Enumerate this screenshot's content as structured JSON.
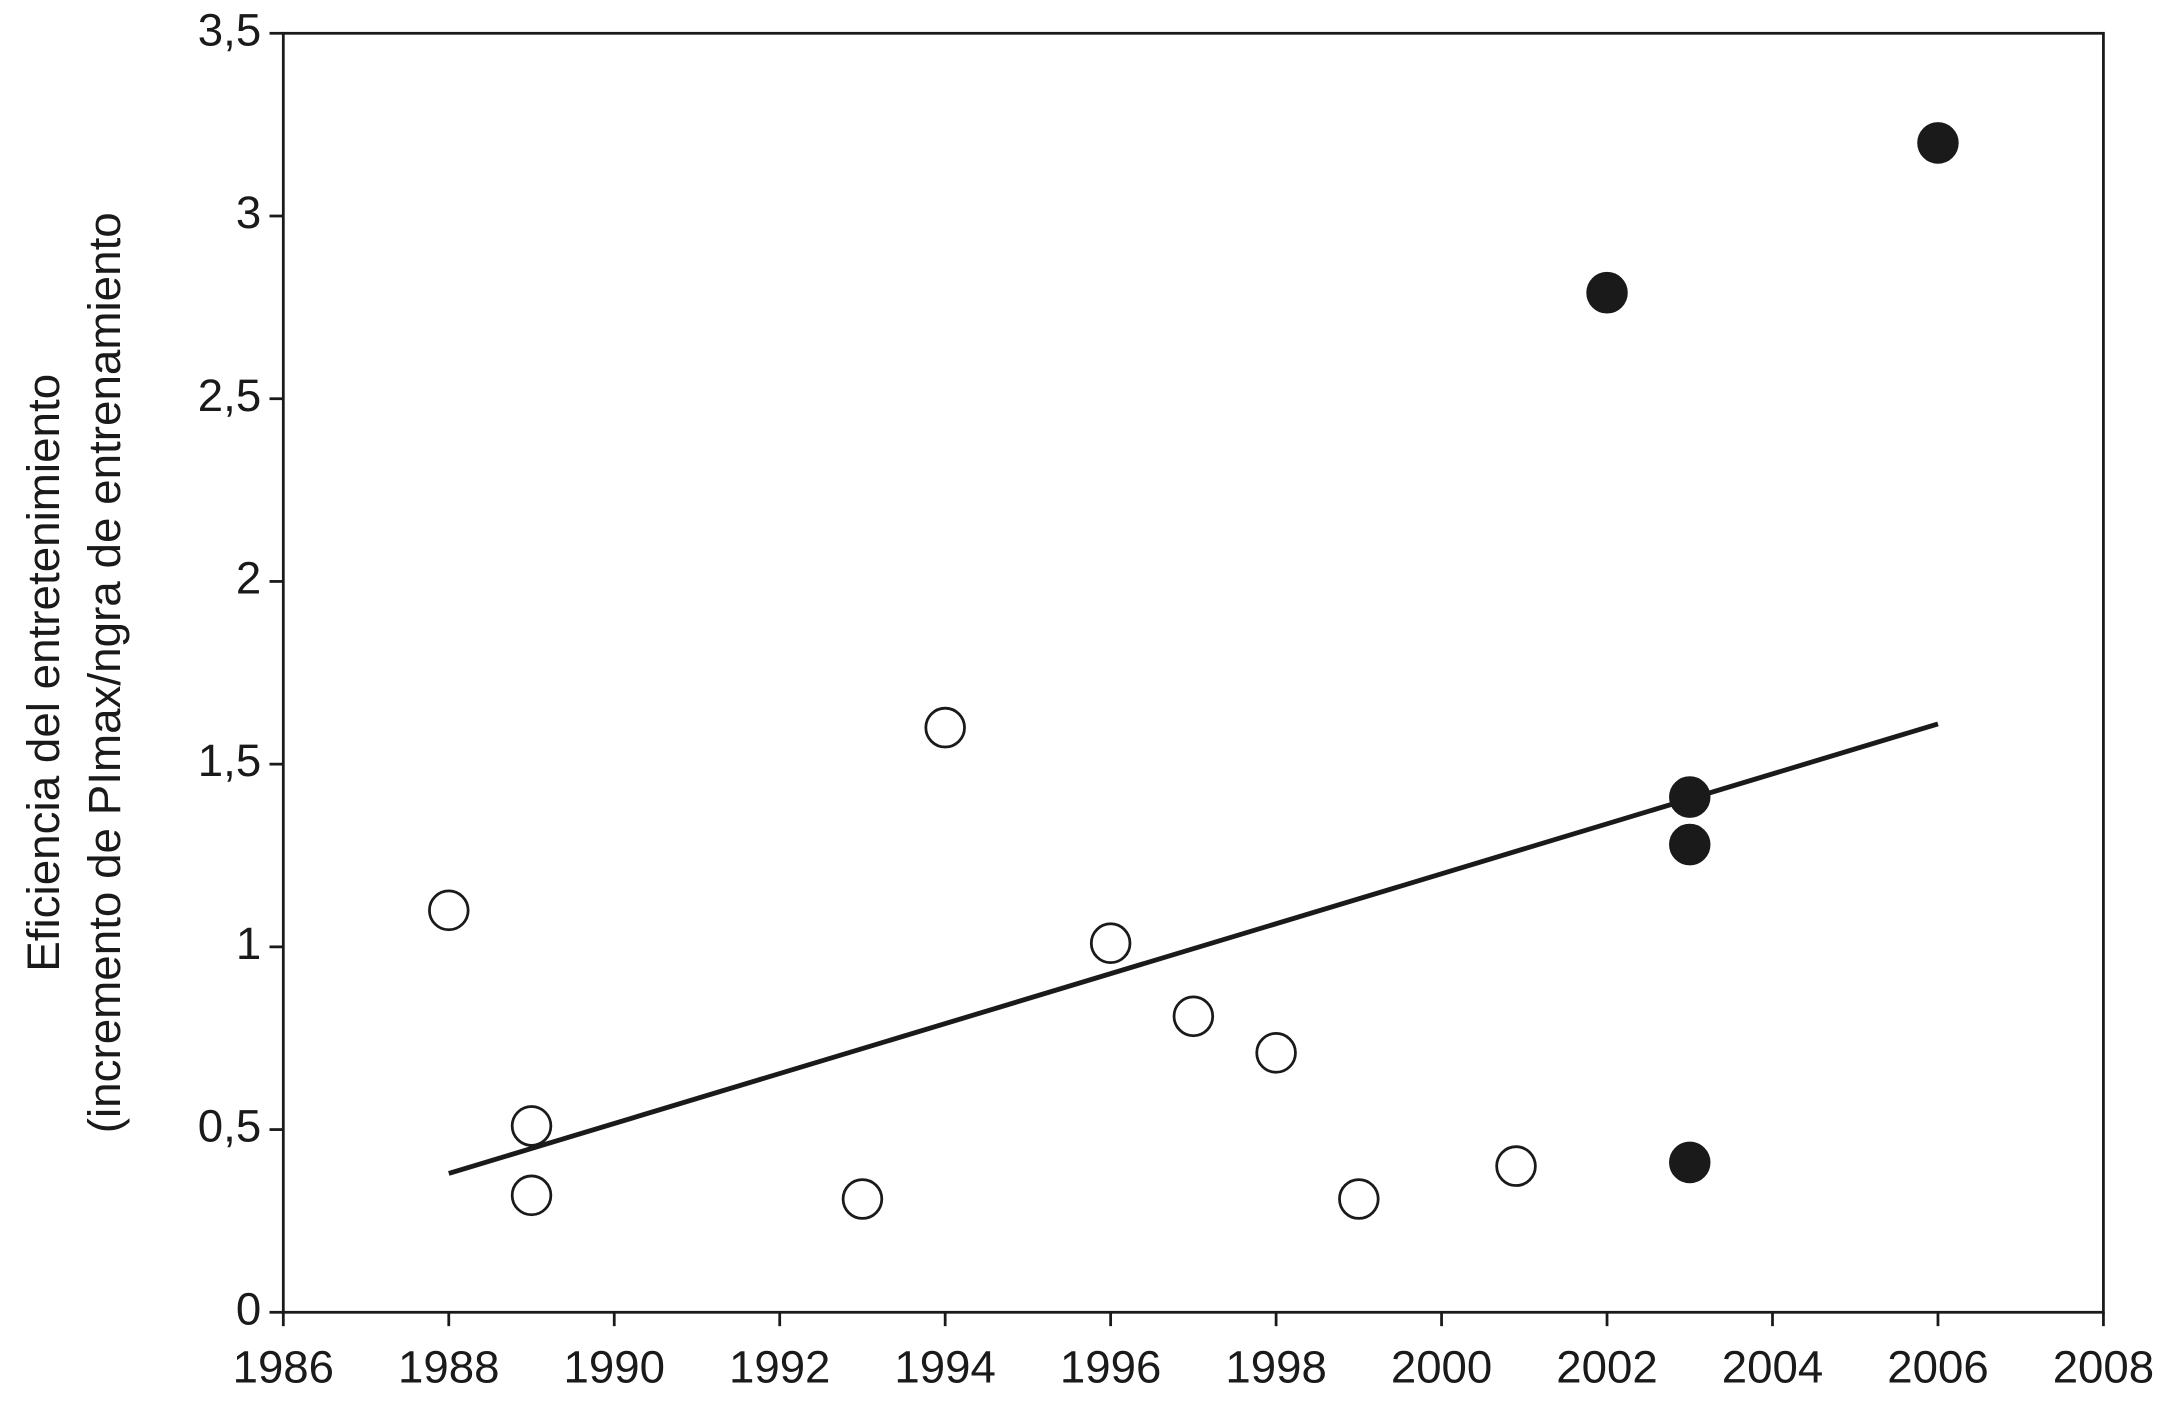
{
  "chart_data": {
    "type": "scatter",
    "ylabel": [
      "Eficiencia del entretenimiento",
      "(incremento de PImax/ngra de entrenamiento"
    ],
    "xlim": [
      1986,
      2008
    ],
    "xticks": [
      1986,
      1988,
      1990,
      1992,
      1994,
      1996,
      1998,
      2000,
      2002,
      2004,
      2006,
      2008
    ],
    "ylim": [
      0,
      3.5
    ],
    "yticks": [
      0,
      {
        "value": 0.5,
        "label": "0,5"
      },
      1,
      {
        "value": 1.5,
        "label": "1,5"
      },
      2,
      {
        "value": 2.5,
        "label": "2,5"
      },
      3,
      {
        "value": 3.5,
        "label": "3,5"
      }
    ],
    "grid": false,
    "series": [
      {
        "color": "#1a1a1a",
        "fill": "#ffffff",
        "x": [
          1988,
          1989,
          1989,
          1993,
          1994,
          1996,
          1997,
          1998,
          1999,
          2000.9
        ],
        "values": [
          1.1,
          0.51,
          0.32,
          0.31,
          1.6,
          1.01,
          0.81,
          0.71,
          0.31,
          0.4
        ]
      },
      {
        "color": "#1a1a1a",
        "fill": "#1a1a1a",
        "x": [
          2002,
          2006,
          2003,
          2003,
          2003
        ],
        "values": [
          2.79,
          3.2,
          1.41,
          1.28,
          0.41
        ]
      }
    ],
    "trend": {
      "color": "#1a1a1a",
      "x": [
        1988,
        2006
      ],
      "values": [
        0.38,
        1.61
      ]
    }
  }
}
